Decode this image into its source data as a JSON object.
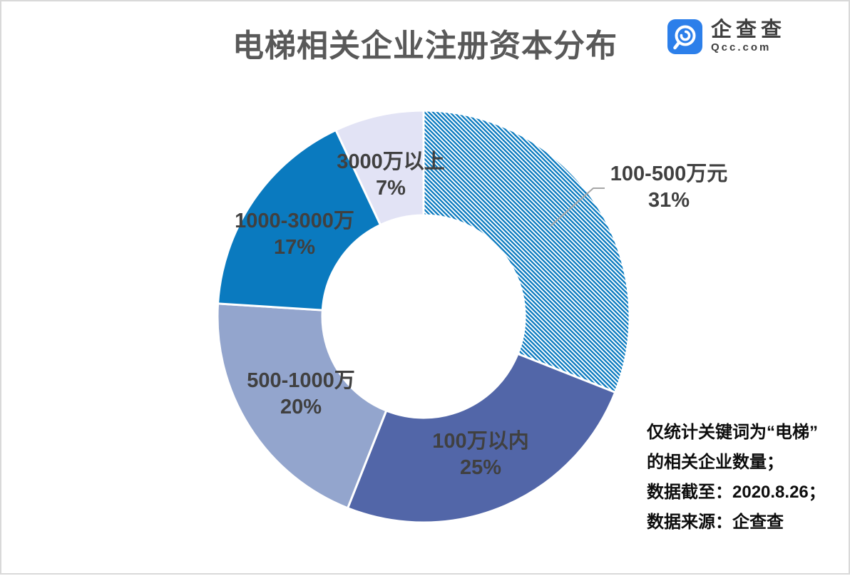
{
  "brand": {
    "name": "企查查",
    "domain": "Qcc.com",
    "logo_color": "#2c7fea"
  },
  "chart_data": {
    "type": "pie",
    "subtype": "donut",
    "title": "电梯相关企业注册资本分布",
    "unit": "percent",
    "direction": "clockwise",
    "start_angle_deg": 0,
    "legend": "none",
    "labels_on_chart": true,
    "label_color": "#404040",
    "leader_line_color": "#a6a6a6",
    "slices": [
      {
        "name": "100-500万元",
        "value": 31,
        "pct_text": "31%",
        "color": "#0a7abf",
        "hatched": true
      },
      {
        "name": "100万以内",
        "value": 25,
        "pct_text": "25%",
        "color": "#5266a8",
        "hatched": false
      },
      {
        "name": "500-1000万",
        "value": 20,
        "pct_text": "20%",
        "color": "#93a5cd",
        "hatched": false
      },
      {
        "name": "1000-3000万",
        "value": 17,
        "pct_text": "17%",
        "color": "#0a7abf",
        "hatched": false
      },
      {
        "name": "3000万以上",
        "value": 7,
        "pct_text": "7%",
        "color": "#e2e3f5",
        "hatched": false
      }
    ]
  },
  "footnote": {
    "lines": [
      "仅统计关键词为“电梯”",
      "的相关企业数量；",
      "数据截至：2020.8.26；",
      "数据来源：企查查"
    ]
  }
}
